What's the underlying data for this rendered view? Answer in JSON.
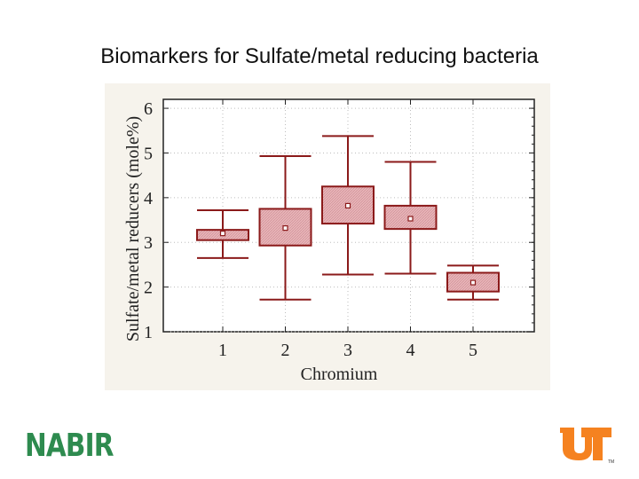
{
  "slide": {
    "title": "Biomarkers for Sulfate/metal reducing bacteria",
    "left_logo_text": "NABIR",
    "right_logo_text": "UT",
    "right_logo_mark": "TM"
  },
  "colors": {
    "box_border": "#8b1a1a",
    "box_fill": "#e8b4b8",
    "panel_bg": "#f6f3ec",
    "nabir_green": "#2e8b4f",
    "ut_orange": "#f58220"
  },
  "chart_data": {
    "type": "box",
    "title": "",
    "xlabel": "Chromium",
    "ylabel": "Sulfate/metal reducers (mole%)",
    "categories": [
      "1",
      "2",
      "3",
      "4",
      "5"
    ],
    "ylim": [
      1,
      6.2
    ],
    "yticks": [
      1,
      2,
      3,
      4,
      5,
      6
    ],
    "grid": true,
    "boxes": [
      {
        "category": "1",
        "whisker_low": 2.65,
        "q1": 3.05,
        "mean": 3.2,
        "q3": 3.28,
        "whisker_high": 3.72
      },
      {
        "category": "2",
        "whisker_low": 1.72,
        "q1": 2.93,
        "mean": 3.32,
        "q3": 3.75,
        "whisker_high": 4.93
      },
      {
        "category": "3",
        "whisker_low": 2.28,
        "q1": 3.42,
        "mean": 3.82,
        "q3": 4.25,
        "whisker_high": 5.38
      },
      {
        "category": "4",
        "whisker_low": 2.3,
        "q1": 3.3,
        "mean": 3.53,
        "q3": 3.82,
        "whisker_high": 4.8
      },
      {
        "category": "5",
        "whisker_low": 1.72,
        "q1": 1.9,
        "mean": 2.1,
        "q3": 2.32,
        "whisker_high": 2.48
      }
    ]
  }
}
